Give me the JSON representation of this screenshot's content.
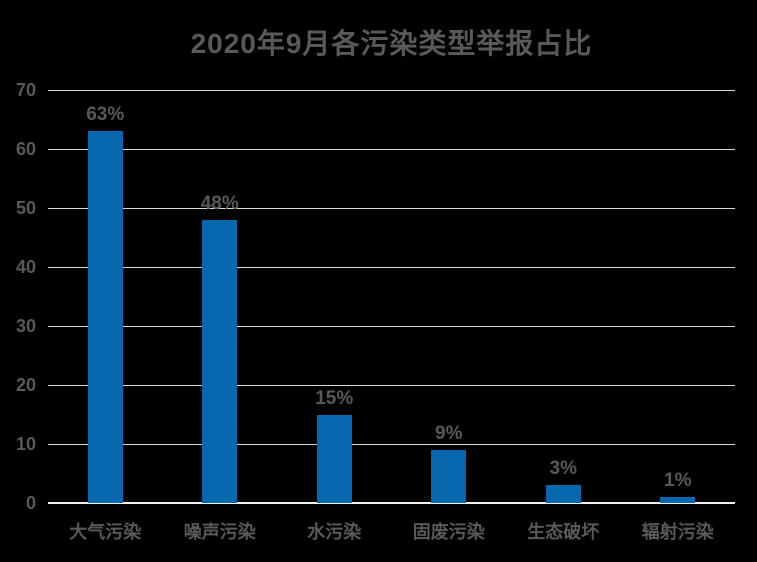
{
  "chart_data": {
    "type": "bar",
    "title": "2020年9月各污染类型举报占比",
    "categories": [
      "大气污染",
      "噪声污染",
      "水污染",
      "固废污染",
      "生态破坏",
      "辐射污染"
    ],
    "values": [
      63,
      48,
      15,
      9,
      3,
      1
    ],
    "data_labels": [
      "63%",
      "48%",
      "15%",
      "9%",
      "3%",
      "1%"
    ],
    "xlabel": "",
    "ylabel": "",
    "ylim": [
      0,
      70
    ],
    "yticks": [
      0,
      10,
      20,
      30,
      40,
      50,
      60,
      70
    ],
    "grid": true,
    "legend_position": "none",
    "colors": {
      "background": "#000000",
      "bar": "#0768B0",
      "text": "#595959",
      "gridline": "#D9D9D9",
      "axis_line": "#F0F0F0"
    }
  }
}
